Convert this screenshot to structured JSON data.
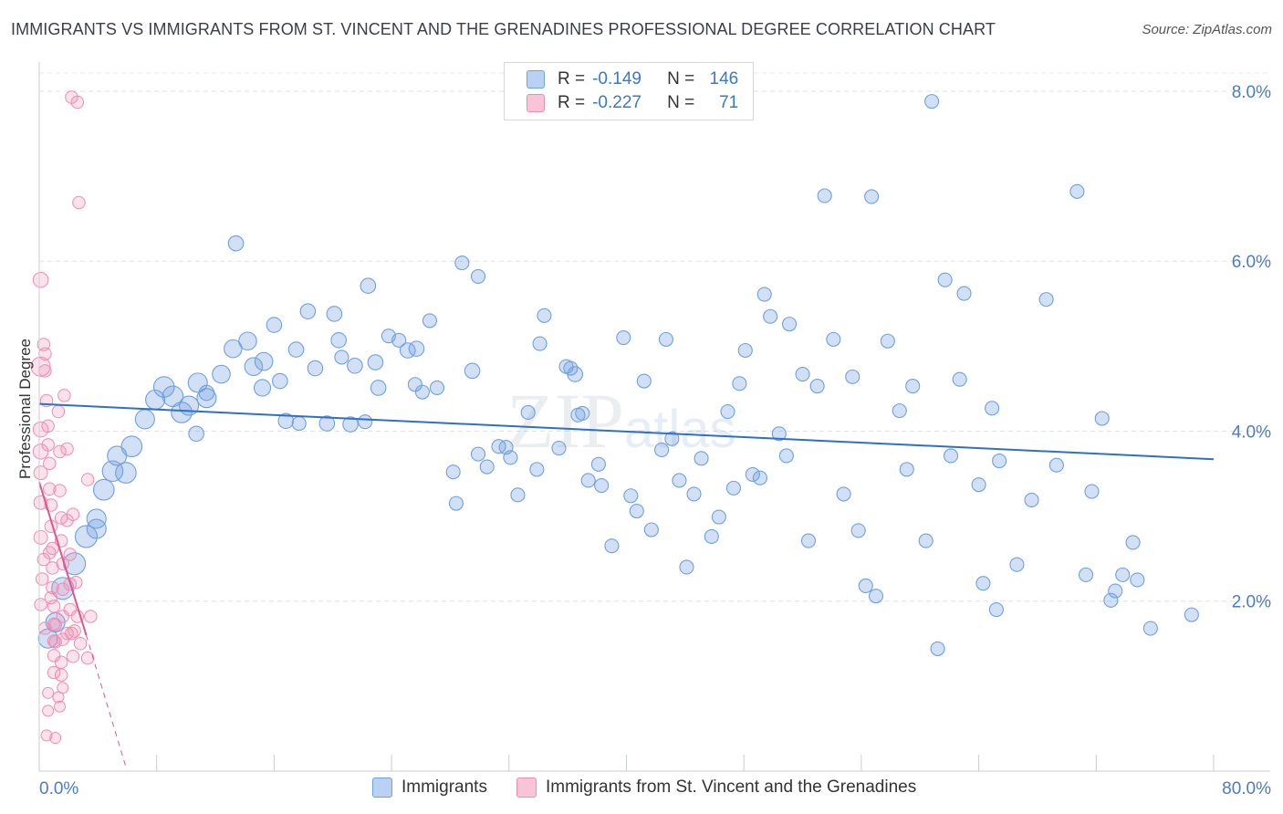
{
  "header": {
    "title": "IMMIGRANTS VS IMMIGRANTS FROM ST. VINCENT AND THE GRENADINES PROFESSIONAL DEGREE CORRELATION CHART",
    "source": "Source: ZipAtlas.com"
  },
  "legend": {
    "r_label": "R =",
    "n_label": "N =",
    "rows": [
      {
        "r": "-0.149",
        "n": "146"
      },
      {
        "r": "-0.227",
        "n": "71"
      }
    ]
  },
  "bottom_legend": {
    "series1": "Immigrants",
    "series2": "Immigrants from St. Vincent and the Grenadines"
  },
  "watermark": "ZIPatlas",
  "chart_data": {
    "type": "scatter",
    "title": "IMMIGRANTS VS IMMIGRANTS FROM ST. VINCENT AND THE GRENADINES PROFESSIONAL DEGREE CORRELATION CHART",
    "xlabel": "",
    "ylabel": "Professional Degree",
    "xlim": [
      0,
      80
    ],
    "ylim": [
      0,
      8.3
    ],
    "x_tick_labels": [
      "0.0%",
      "80.0%"
    ],
    "y_ticks": [
      2,
      4,
      6,
      8
    ],
    "y_tick_labels": [
      "2.0%",
      "4.0%",
      "6.0%",
      "8.0%"
    ],
    "colors": {
      "immigrants": "#6fa0e0",
      "svg": "#f08cb0",
      "trend_blue": "#2f6fcc",
      "trend_pink": "#e05590",
      "axis_text": "#4a7cc7"
    },
    "series": [
      {
        "name": "Immigrants",
        "r": -0.149,
        "n": 146,
        "trend": {
          "x": [
            0,
            80
          ],
          "y": [
            4.32,
            3.67
          ]
        },
        "points": [
          [
            0.6,
            1.56,
            14
          ],
          [
            1.1,
            1.75,
            14
          ],
          [
            1.6,
            2.15,
            16
          ],
          [
            2.4,
            2.44,
            16
          ],
          [
            3.2,
            2.76,
            16
          ],
          [
            3.9,
            2.85,
            14
          ],
          [
            3.9,
            2.97,
            14
          ],
          [
            4.4,
            3.31,
            15
          ],
          [
            5,
            3.53,
            15
          ],
          [
            5.9,
            3.51,
            15
          ],
          [
            5.3,
            3.71,
            14
          ],
          [
            6.3,
            3.82,
            15
          ],
          [
            7.2,
            4.14,
            14
          ],
          [
            7.9,
            4.37,
            14
          ],
          [
            8.5,
            4.52,
            15
          ],
          [
            9.1,
            4.41,
            15
          ],
          [
            9.7,
            4.22,
            15
          ],
          [
            10.2,
            4.3,
            14
          ],
          [
            10.8,
            4.57,
            14
          ],
          [
            11.4,
            4.39,
            14
          ],
          [
            12.4,
            4.67,
            13
          ],
          [
            13.2,
            4.97,
            13
          ],
          [
            14.2,
            5.06,
            13
          ],
          [
            14.6,
            4.76,
            13
          ],
          [
            15.3,
            4.82,
            13
          ],
          [
            15.2,
            4.51,
            12
          ],
          [
            16.4,
            4.59,
            11
          ],
          [
            16,
            5.25,
            11
          ],
          [
            16.8,
            4.12,
            11
          ],
          [
            17.5,
            4.96,
            11
          ],
          [
            18.3,
            5.41,
            11
          ],
          [
            18.8,
            4.74,
            11
          ],
          [
            19.6,
            4.09,
            11
          ],
          [
            20.1,
            5.38,
            11
          ],
          [
            20.4,
            5.07,
            11
          ],
          [
            21.2,
            4.08,
            11
          ],
          [
            21.5,
            4.77,
            11
          ],
          [
            22.2,
            4.11,
            10
          ],
          [
            22.4,
            5.71,
            11
          ],
          [
            22.9,
            4.81,
            11
          ],
          [
            23.1,
            4.51,
            11
          ],
          [
            23.8,
            5.12,
            10
          ],
          [
            24.5,
            5.07,
            10
          ],
          [
            25.1,
            4.95,
            11
          ],
          [
            25.6,
            4.55,
            10
          ],
          [
            26.1,
            4.46,
            10
          ],
          [
            26.6,
            5.3,
            10
          ],
          [
            27.1,
            4.51,
            10
          ],
          [
            28.2,
            3.52,
            10
          ],
          [
            28.4,
            3.15,
            10
          ],
          [
            28.8,
            5.98,
            10
          ],
          [
            29.5,
            4.71,
            11
          ],
          [
            29.9,
            5.82,
            10
          ],
          [
            29.9,
            3.73,
            10
          ],
          [
            30.5,
            3.58,
            10
          ],
          [
            31.3,
            3.82,
            10
          ],
          [
            31.8,
            3.81,
            10
          ],
          [
            32.1,
            3.69,
            10
          ],
          [
            32.6,
            3.25,
            10
          ],
          [
            33.3,
            4.22,
            10
          ],
          [
            33.9,
            3.55,
            10
          ],
          [
            34.4,
            5.36,
            10
          ],
          [
            34.1,
            5.03,
            10
          ],
          [
            35.4,
            3.8,
            10
          ],
          [
            35.9,
            4.76,
            10
          ],
          [
            36.2,
            4.74,
            10
          ],
          [
            36.5,
            4.67,
            11
          ],
          [
            36.7,
            4.19,
            10
          ],
          [
            37,
            4.21,
            10
          ],
          [
            37.4,
            3.42,
            10
          ],
          [
            38.1,
            3.61,
            10
          ],
          [
            38.3,
            3.36,
            10
          ],
          [
            39,
            2.65,
            10
          ],
          [
            39.8,
            5.1,
            10
          ],
          [
            40.3,
            3.24,
            10
          ],
          [
            40.7,
            3.06,
            10
          ],
          [
            41.2,
            4.59,
            10
          ],
          [
            41.7,
            2.84,
            10
          ],
          [
            42.4,
            3.78,
            10
          ],
          [
            42.7,
            5.08,
            10
          ],
          [
            43.1,
            3.91,
            10
          ],
          [
            43.6,
            3.42,
            10
          ],
          [
            44.1,
            2.4,
            10
          ],
          [
            44.6,
            3.26,
            10
          ],
          [
            45.1,
            3.68,
            10
          ],
          [
            45.8,
            2.76,
            10
          ],
          [
            46.3,
            2.99,
            10
          ],
          [
            46.9,
            4.23,
            10
          ],
          [
            47.3,
            3.33,
            10
          ],
          [
            47.7,
            4.56,
            10
          ],
          [
            48.1,
            4.95,
            10
          ],
          [
            48.6,
            3.49,
            10
          ],
          [
            49.1,
            3.45,
            10
          ],
          [
            49.4,
            5.61,
            10
          ],
          [
            49.8,
            5.35,
            10
          ],
          [
            50.4,
            3.97,
            10
          ],
          [
            50.9,
            3.71,
            10
          ],
          [
            51.1,
            5.26,
            10
          ],
          [
            52,
            4.67,
            10
          ],
          [
            52.4,
            2.71,
            10
          ],
          [
            53,
            4.53,
            10
          ],
          [
            53.5,
            6.77,
            10
          ],
          [
            54.1,
            5.08,
            10
          ],
          [
            54.8,
            3.26,
            10
          ],
          [
            55.4,
            4.64,
            10
          ],
          [
            55.8,
            2.83,
            10
          ],
          [
            56.3,
            2.18,
            10
          ],
          [
            56.7,
            6.76,
            10
          ],
          [
            57,
            2.06,
            10
          ],
          [
            57.8,
            5.06,
            10
          ],
          [
            58.6,
            4.24,
            10
          ],
          [
            59.1,
            3.55,
            10
          ],
          [
            59.5,
            4.53,
            10
          ],
          [
            60.4,
            2.71,
            10
          ],
          [
            61.2,
            1.44,
            10
          ],
          [
            61.7,
            5.78,
            10
          ],
          [
            62.1,
            3.71,
            10
          ],
          [
            62.7,
            4.61,
            10
          ],
          [
            63,
            5.62,
            10
          ],
          [
            64.3,
            2.21,
            10
          ],
          [
            64,
            3.37,
            10
          ],
          [
            64.9,
            4.27,
            10
          ],
          [
            65.2,
            1.9,
            10
          ],
          [
            65.4,
            3.65,
            10
          ],
          [
            66.6,
            2.43,
            10
          ],
          [
            67.6,
            3.19,
            10
          ],
          [
            68.6,
            5.55,
            10
          ],
          [
            69.3,
            3.6,
            10
          ],
          [
            71.3,
            2.31,
            10
          ],
          [
            71.7,
            3.29,
            10
          ],
          [
            72.4,
            4.15,
            10
          ],
          [
            73,
            2.01,
            10
          ],
          [
            73.3,
            2.12,
            10
          ],
          [
            73.8,
            2.31,
            10
          ],
          [
            74.5,
            2.69,
            10
          ],
          [
            74.8,
            2.25,
            10
          ],
          [
            75.7,
            1.68,
            10
          ],
          [
            78.5,
            1.84,
            10
          ],
          [
            70.7,
            6.82,
            10
          ],
          [
            60.8,
            7.88,
            10
          ],
          [
            10.7,
            3.97,
            11
          ],
          [
            13.4,
            6.21,
            11
          ],
          [
            17.7,
            4.09,
            10
          ],
          [
            11.4,
            4.45,
            11
          ],
          [
            20.6,
            4.87,
            10
          ],
          [
            25.7,
            4.97,
            11
          ]
        ]
      },
      {
        "name": "Immigrants from St. Vincent and the Grenadines",
        "r": -0.227,
        "n": 71,
        "trend": {
          "x": [
            0,
            3.2
          ],
          "y": [
            3.4,
            1.6
          ]
        },
        "trend_dashed": {
          "x": [
            3.2,
            5.9
          ],
          "y": [
            1.6,
            0.05
          ]
        },
        "points": [
          [
            0.1,
            5.78,
            11
          ],
          [
            0.1,
            4.76,
            14
          ],
          [
            0.1,
            4.02,
            11
          ],
          [
            0.1,
            3.76,
            11
          ],
          [
            0.1,
            3.51,
            10
          ],
          [
            0.1,
            3.16,
            10
          ],
          [
            0.1,
            2.75,
            10
          ],
          [
            0.1,
            1.96,
            9
          ],
          [
            0.3,
            5.02,
            9
          ],
          [
            0.4,
            4.91,
            9
          ],
          [
            0.4,
            4.71,
            9
          ],
          [
            0.5,
            4.36,
            9
          ],
          [
            0.6,
            4.06,
            9
          ],
          [
            0.6,
            3.84,
            9
          ],
          [
            0.7,
            3.62,
            9
          ],
          [
            0.7,
            3.32,
            9
          ],
          [
            0.8,
            3.13,
            9
          ],
          [
            0.8,
            2.88,
            9
          ],
          [
            0.9,
            2.62,
            9
          ],
          [
            0.9,
            2.39,
            9
          ],
          [
            0.9,
            2.16,
            9
          ],
          [
            1,
            1.94,
            9
          ],
          [
            1,
            1.73,
            9
          ],
          [
            1,
            1.53,
            9
          ],
          [
            1,
            1.36,
            9
          ],
          [
            1,
            1.16,
            9
          ],
          [
            0.6,
            0.92,
            8
          ],
          [
            0.6,
            0.71,
            8
          ],
          [
            0.5,
            0.42,
            8
          ],
          [
            1.1,
            0.39,
            8
          ],
          [
            1.3,
            4.23,
            9
          ],
          [
            1.4,
            3.76,
            9
          ],
          [
            1.4,
            3.3,
            9
          ],
          [
            1.5,
            2.98,
            9
          ],
          [
            1.5,
            2.71,
            9
          ],
          [
            1.6,
            2.44,
            9
          ],
          [
            1.6,
            2.14,
            9
          ],
          [
            1.6,
            1.82,
            9
          ],
          [
            1.6,
            1.55,
            9
          ],
          [
            1.5,
            1.28,
            9
          ],
          [
            1.5,
            1.13,
            9
          ],
          [
            1.3,
            0.87,
            8
          ],
          [
            1.4,
            0.76,
            8
          ],
          [
            1.6,
            0.98,
            8
          ],
          [
            1.7,
            4.42,
            9
          ],
          [
            1.9,
            3.79,
            9
          ],
          [
            1.9,
            2.95,
            9
          ],
          [
            2.1,
            2.55,
            9
          ],
          [
            2.1,
            2.2,
            9
          ],
          [
            2.1,
            1.9,
            9
          ],
          [
            2.2,
            1.62,
            9
          ],
          [
            2.3,
            1.35,
            9
          ],
          [
            2.4,
            1.65,
            9
          ],
          [
            2.6,
            7.87,
            9
          ],
          [
            2.7,
            6.69,
            9
          ],
          [
            2.3,
            3.02,
            9
          ],
          [
            2.5,
            2.22,
            9
          ],
          [
            2.6,
            1.82,
            9
          ],
          [
            2.8,
            1.5,
            9
          ],
          [
            3.3,
            1.33,
            9
          ],
          [
            3.3,
            3.43,
            9
          ],
          [
            3.5,
            1.82,
            9
          ],
          [
            0.2,
            2.26,
            9
          ],
          [
            0.3,
            2.49,
            9
          ],
          [
            0.4,
            1.68,
            9
          ],
          [
            0.7,
            2.57,
            9
          ],
          [
            0.8,
            2.04,
            9
          ],
          [
            1.9,
            1.62,
            9
          ],
          [
            1.1,
            1.72,
            9
          ],
          [
            1.1,
            1.52,
            9
          ],
          [
            2.2,
            7.93,
            9
          ]
        ]
      }
    ]
  }
}
